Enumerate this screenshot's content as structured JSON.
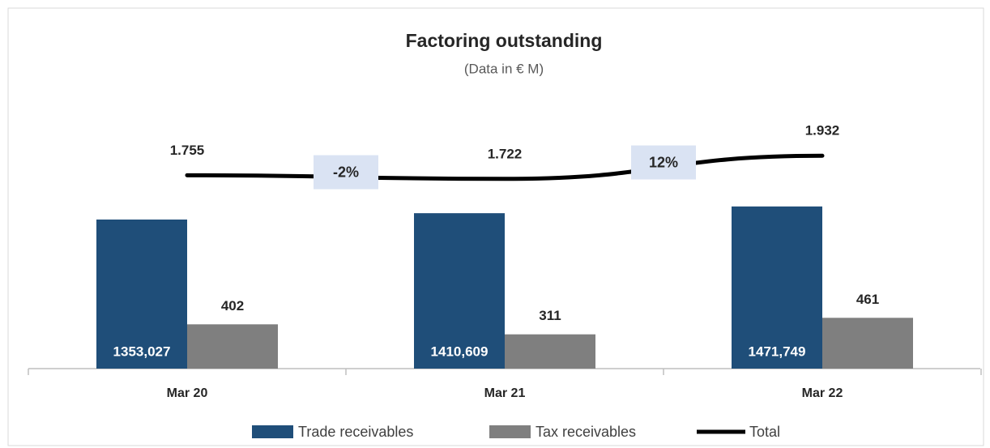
{
  "chart_data": {
    "type": "bar",
    "title": "Factoring outstanding",
    "subtitle": "(Data in € M)",
    "categories": [
      "Mar 20",
      "Mar 21",
      "Mar 22"
    ],
    "series": [
      {
        "name": "Trade receivables",
        "color": "#1f4e79",
        "values": [
          1353.027,
          1410.609,
          1471.749
        ],
        "value_labels": [
          "1353,027",
          "1410,609",
          "1471,749"
        ]
      },
      {
        "name": "Tax receivables",
        "color": "#7f7f7f",
        "values": [
          402,
          311,
          461
        ]
      },
      {
        "name": "Total",
        "type": "line",
        "color": "#000000",
        "values": [
          1755,
          1722,
          1932
        ],
        "value_labels": [
          "1.755",
          "1.722",
          "1.932"
        ]
      }
    ],
    "annotations": [
      "-2%",
      "12%"
    ],
    "legend": "bottom"
  }
}
